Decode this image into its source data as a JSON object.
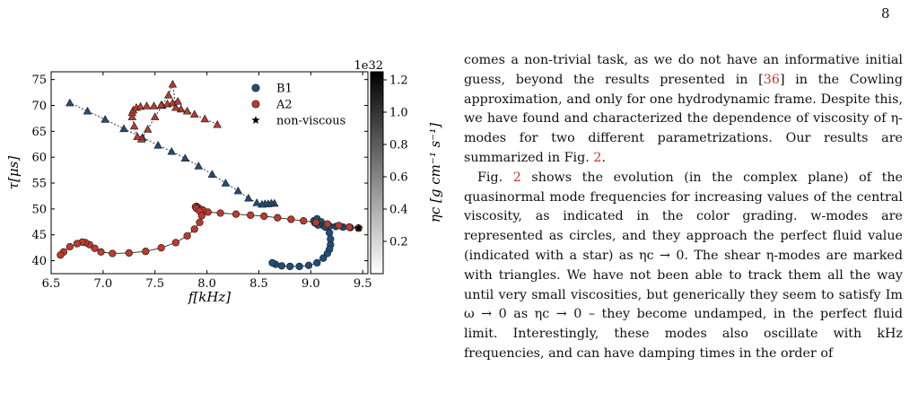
{
  "page": {
    "number": "8",
    "paragraphs": [
      {
        "parts": [
          "comes a non-trivial task, as we do not have an informative initial guess, beyond the results presented in [",
          "36",
          "] in the Cowling approximation, and only for one hydrodynamic frame. Despite this, we have found and characterized the dependence of viscosity of η-modes for two different parametrizations. Our results are summarized in Fig. ",
          "2",
          "."
        ]
      },
      {
        "parts": [
          "Fig. ",
          "2",
          " shows the evolution (in the complex plane) of the quasinormal mode frequencies for increasing values of the central viscosity, as indicated in the color grading. w-modes are represented as circles, and they approach the perfect fluid value (indicated with a star) as ηc → 0. The shear η-modes are marked with triangles. We have not been able to track them all the way until very small viscosities, but generically they seem to satisfy Im ω → 0 as ηc → 0 – they become undamped, in the perfect fluid limit. Interestingly, these modes also oscillate with kHz frequencies, and can have damping times in the order of"
        ]
      }
    ]
  },
  "chart_data": {
    "type": "scatter",
    "xlabel": "f[kHz]",
    "ylabel": "τ[μs]",
    "xlim": [
      6.5,
      9.55
    ],
    "ylim": [
      37.5,
      76.5
    ],
    "xticks": [
      "6.5",
      "7.0",
      "7.5",
      "8.0",
      "8.5",
      "9.0",
      "9.5"
    ],
    "yticks": [
      "40",
      "45",
      "50",
      "55",
      "60",
      "65",
      "70",
      "75"
    ],
    "xtick_values": [
      6.5,
      7.0,
      7.5,
      8.0,
      8.5,
      9.0,
      9.5
    ],
    "ytick_values": [
      40,
      45,
      50,
      55,
      60,
      65,
      70,
      75
    ],
    "legend_position": "top-right",
    "legend": [
      {
        "label": "B1",
        "marker": "circle",
        "color": "#1f4e79"
      },
      {
        "label": "A2",
        "marker": "circle",
        "color": "#c0392b"
      },
      {
        "label": "non-viscous",
        "marker": "star",
        "color": "#000000"
      }
    ],
    "colorbar": {
      "label": "ηc [g cm⁻¹ s⁻¹]",
      "multiplier": "1e32",
      "range": [
        0,
        1.25
      ],
      "ticks": [
        "0.2",
        "0.4",
        "0.6",
        "0.8",
        "1.0",
        "1.2"
      ],
      "tick_values": [
        0.2,
        0.4,
        0.6,
        0.8,
        1.0,
        1.2
      ],
      "colormap": "grays"
    },
    "non_viscous": [
      {
        "x": 9.46,
        "y": 46.3
      }
    ],
    "series": [
      {
        "name": "B1",
        "mode": "w-mode",
        "marker": "circle",
        "line": "solid",
        "color": "#1f4e79",
        "x": [
          9.46,
          9.38,
          9.31,
          9.24,
          9.18,
          9.12,
          9.07,
          9.04,
          9.03,
          9.06,
          9.1,
          9.14,
          9.18,
          9.19,
          9.19,
          9.18,
          9.16,
          9.12,
          9.06,
          8.98,
          8.89,
          8.8,
          8.72,
          8.66,
          8.63
        ],
        "y": [
          46.3,
          46.4,
          46.5,
          46.6,
          46.7,
          46.8,
          46.9,
          47.3,
          47.7,
          48.1,
          47.5,
          46.5,
          45.4,
          44.2,
          43.1,
          42.2,
          41.4,
          40.5,
          39.6,
          39.1,
          38.9,
          38.9,
          39.0,
          39.3,
          39.6
        ]
      },
      {
        "name": "A2",
        "mode": "w-mode",
        "marker": "circle",
        "line": "solid",
        "color": "#c0392b",
        "x": [
          9.46,
          9.37,
          9.27,
          9.16,
          9.05,
          8.93,
          8.81,
          8.68,
          8.55,
          8.42,
          8.28,
          8.13,
          8.01,
          7.96,
          7.92,
          7.9,
          7.89,
          7.9,
          7.93,
          7.95,
          7.93,
          7.88,
          7.81,
          7.7,
          7.56,
          7.41,
          7.25,
          7.09,
          6.98,
          6.92,
          6.87,
          6.83,
          6.8,
          6.75,
          6.68,
          6.62,
          6.59
        ],
        "y": [
          46.3,
          46.5,
          46.8,
          47.1,
          47.4,
          47.7,
          48.0,
          48.3,
          48.6,
          48.8,
          49.0,
          49.2,
          49.4,
          49.8,
          50.2,
          50.5,
          50.4,
          50.1,
          49.6,
          48.7,
          47.4,
          46.1,
          44.8,
          43.5,
          42.5,
          41.8,
          41.5,
          41.4,
          41.7,
          42.4,
          43.1,
          43.5,
          43.6,
          43.3,
          42.7,
          41.7,
          41.1
        ]
      },
      {
        "name": "B1",
        "mode": "η-mode",
        "marker": "triangle",
        "line": "dotted",
        "color": "#1f4e79",
        "x": [
          8.65,
          8.62,
          8.59,
          8.56,
          8.53,
          8.48,
          8.4,
          8.3,
          8.18,
          8.05,
          7.92,
          7.79,
          7.66,
          7.53,
          7.38,
          7.2,
          7.02,
          6.85,
          6.68
        ],
        "y": [
          51.1,
          51.1,
          51.0,
          51.0,
          50.9,
          51.2,
          52.1,
          53.5,
          55.0,
          56.7,
          58.3,
          59.8,
          61.1,
          62.3,
          63.8,
          65.5,
          67.3,
          68.9,
          70.5
        ]
      },
      {
        "name": "A2",
        "mode": "η-mode",
        "marker": "triangle",
        "line": "dotted",
        "color": "#c0392b",
        "x": [
          8.1,
          7.98,
          7.88,
          7.81,
          7.75,
          7.7,
          7.67,
          7.63,
          7.57,
          7.5,
          7.43,
          7.37,
          7.33,
          7.3,
          7.28,
          7.28,
          7.29,
          7.32,
          7.36,
          7.42,
          7.49,
          7.56,
          7.62,
          7.67,
          7.72
        ],
        "y": [
          66.3,
          67.4,
          68.3,
          68.9,
          69.3,
          69.6,
          74.1,
          72.0,
          70.0,
          67.8,
          65.4,
          63.5,
          64.0,
          66.0,
          67.8,
          68.6,
          69.1,
          69.6,
          69.8,
          69.9,
          69.9,
          70.1,
          70.3,
          70.5,
          70.8
        ]
      }
    ]
  }
}
